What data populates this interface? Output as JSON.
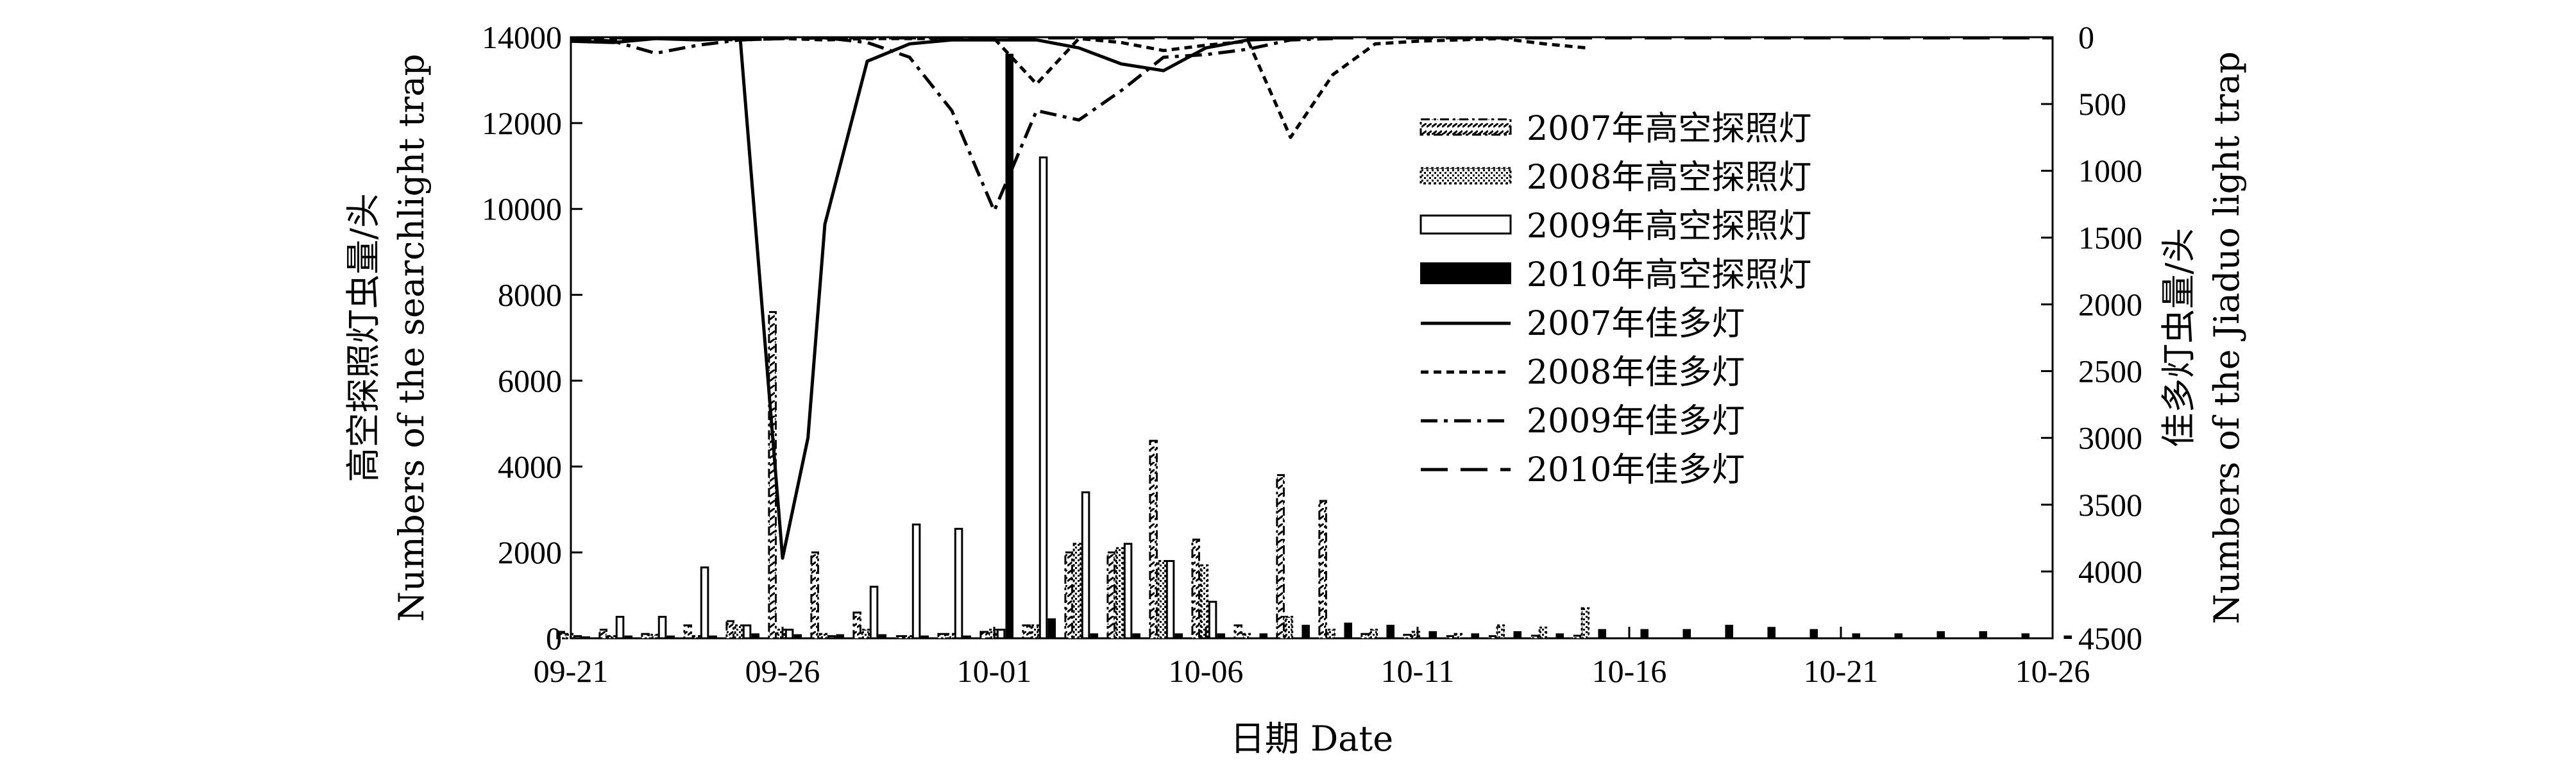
{
  "chart_data": {
    "type": "bar",
    "x": {
      "title": "日期 Date",
      "ticks": [
        "09-21",
        "09-26",
        "10-01",
        "10-06",
        "10-11",
        "10-16",
        "10-21",
        "10-26"
      ],
      "range": [
        "09-21",
        "10-26"
      ]
    },
    "y_left": {
      "title_cn": "高空探照灯虫量/头",
      "title_en": "Numbers of the searchlight trap",
      "range": [
        0,
        14000
      ],
      "ticks": [
        "0",
        "2000",
        "4000",
        "6000",
        "8000",
        "10000",
        "12000",
        "14000"
      ]
    },
    "y_right": {
      "title_cn": "佳多灯虫量/头",
      "title_en": "Numbers of the Jiaduo light trap",
      "range": [
        0,
        4500
      ],
      "reversed": true,
      "ticks": [
        "0",
        "500",
        "1000",
        "1500",
        "2000",
        "2500",
        "3000",
        "3500",
        "4000",
        "4500"
      ]
    },
    "legend_placement": "upper-middle-right",
    "bar_series": [
      {
        "name": "2007年高空探照灯",
        "style": "dashdot-hatch",
        "values": [
          [
            "09-21",
            150
          ],
          [
            "09-22",
            200
          ],
          [
            "09-23",
            100
          ],
          [
            "09-24",
            300
          ],
          [
            "09-25",
            400
          ],
          [
            "09-26",
            7600
          ],
          [
            "09-27",
            2000
          ],
          [
            "09-28",
            600
          ],
          [
            "09-29",
            50
          ],
          [
            "09-30",
            100
          ],
          [
            "10-01",
            150
          ],
          [
            "10-02",
            300
          ],
          [
            "10-03",
            2000
          ],
          [
            "10-04",
            2000
          ],
          [
            "10-05",
            4600
          ],
          [
            "10-06",
            2300
          ],
          [
            "10-07",
            300
          ],
          [
            "10-08",
            3800
          ],
          [
            "10-09",
            3200
          ],
          [
            "10-10",
            100
          ],
          [
            "10-11",
            80
          ],
          [
            "10-12",
            50
          ],
          [
            "10-13",
            50
          ],
          [
            "10-14",
            60
          ],
          [
            "10-15",
            60
          ]
        ]
      },
      {
        "name": "2008年高空探照灯",
        "style": "dotted-hatch",
        "values": [
          [
            "09-21",
            100
          ],
          [
            "09-22",
            50
          ],
          [
            "09-23",
            80
          ],
          [
            "09-24",
            50
          ],
          [
            "09-25",
            300
          ],
          [
            "09-26",
            200
          ],
          [
            "09-27",
            100
          ],
          [
            "09-28",
            200
          ],
          [
            "09-29",
            50
          ],
          [
            "09-30",
            100
          ],
          [
            "10-01",
            200
          ],
          [
            "10-02",
            300
          ],
          [
            "10-03",
            2200
          ],
          [
            "10-04",
            2100
          ],
          [
            "10-05",
            1800
          ],
          [
            "10-06",
            1700
          ],
          [
            "10-07",
            100
          ],
          [
            "10-08",
            500
          ],
          [
            "10-09",
            200
          ],
          [
            "10-10",
            200
          ],
          [
            "10-11",
            150
          ],
          [
            "10-12",
            100
          ],
          [
            "10-13",
            300
          ],
          [
            "10-14",
            250
          ],
          [
            "10-15",
            700
          ]
        ]
      },
      {
        "name": "2009年高空探照灯",
        "style": "hollow",
        "values": [
          [
            "09-21",
            50
          ],
          [
            "09-22",
            500
          ],
          [
            "09-23",
            500
          ],
          [
            "09-24",
            1650
          ],
          [
            "09-25",
            300
          ],
          [
            "09-26",
            200
          ],
          [
            "09-27",
            50
          ],
          [
            "09-28",
            1200
          ],
          [
            "09-29",
            2650
          ],
          [
            "09-30",
            2550
          ],
          [
            "10-01",
            200
          ],
          [
            "10-02",
            11200
          ],
          [
            "10-03",
            3400
          ],
          [
            "10-04",
            2200
          ],
          [
            "10-05",
            1800
          ],
          [
            "10-06",
            850
          ],
          [
            "10-07",
            0
          ],
          [
            "10-08",
            0
          ],
          [
            "10-09",
            0
          ],
          [
            "10-10",
            0
          ]
        ]
      },
      {
        "name": "2010年高空探照灯",
        "style": "solid",
        "values": [
          [
            "09-21",
            30
          ],
          [
            "09-22",
            50
          ],
          [
            "09-23",
            50
          ],
          [
            "09-24",
            50
          ],
          [
            "09-25",
            100
          ],
          [
            "09-26",
            80
          ],
          [
            "09-27",
            80
          ],
          [
            "09-28",
            80
          ],
          [
            "09-29",
            50
          ],
          [
            "09-30",
            50
          ],
          [
            "10-01",
            13600
          ],
          [
            "10-02",
            450
          ],
          [
            "10-03",
            100
          ],
          [
            "10-04",
            100
          ],
          [
            "10-05",
            100
          ],
          [
            "10-06",
            100
          ],
          [
            "10-07",
            100
          ],
          [
            "10-08",
            300
          ],
          [
            "10-09",
            350
          ],
          [
            "10-10",
            300
          ],
          [
            "10-11",
            150
          ],
          [
            "10-12",
            100
          ],
          [
            "10-13",
            150
          ],
          [
            "10-14",
            100
          ],
          [
            "10-15",
            200
          ],
          [
            "10-16",
            200
          ],
          [
            "10-17",
            200
          ],
          [
            "10-18",
            300
          ],
          [
            "10-19",
            250
          ],
          [
            "10-20",
            200
          ],
          [
            "10-21",
            100
          ],
          [
            "10-22",
            100
          ],
          [
            "10-23",
            150
          ],
          [
            "10-24",
            150
          ],
          [
            "10-25",
            100
          ],
          [
            "10-26",
            50
          ]
        ]
      }
    ],
    "line_series": [
      {
        "name": "2007年佳多灯",
        "style": "solid",
        "values": [
          [
            "09-21",
            30
          ],
          [
            "09-22",
            40
          ],
          [
            "09-23",
            10
          ],
          [
            "09-24",
            20
          ],
          [
            "09-25",
            10
          ],
          [
            "09-26",
            3900
          ],
          [
            "09-26.6",
            3000
          ],
          [
            "09-27",
            1400
          ],
          [
            "09-28",
            180
          ],
          [
            "09-29",
            50
          ],
          [
            "09-30",
            20
          ],
          [
            "10-01",
            20
          ],
          [
            "10-02",
            20
          ],
          [
            "10-03",
            80
          ],
          [
            "10-04",
            200
          ],
          [
            "10-05",
            250
          ],
          [
            "10-06",
            80
          ],
          [
            "10-07",
            20
          ],
          [
            "10-08",
            10
          ]
        ]
      },
      {
        "name": "2008年佳多灯",
        "style": "dashed-fine",
        "values": [
          [
            "09-21",
            10
          ],
          [
            "09-22",
            20
          ],
          [
            "09-23",
            10
          ],
          [
            "09-24",
            10
          ],
          [
            "09-25",
            20
          ],
          [
            "09-26",
            10
          ],
          [
            "09-27",
            20
          ],
          [
            "09-28",
            10
          ],
          [
            "09-29",
            10
          ],
          [
            "09-30",
            10
          ],
          [
            "10-01",
            10
          ],
          [
            "10-02",
            350
          ],
          [
            "10-03",
            10
          ],
          [
            "10-04",
            40
          ],
          [
            "10-05",
            100
          ],
          [
            "10-06",
            60
          ],
          [
            "10-07",
            30
          ],
          [
            "10-08",
            750
          ],
          [
            "10-09",
            280
          ],
          [
            "10-10",
            50
          ],
          [
            "10-11",
            30
          ],
          [
            "10-12",
            20
          ],
          [
            "10-13",
            10
          ],
          [
            "10-14",
            50
          ],
          [
            "10-15",
            80
          ]
        ]
      },
      {
        "name": "2009年佳多灯",
        "style": "dashdot",
        "values": [
          [
            "09-21",
            5
          ],
          [
            "09-22",
            30
          ],
          [
            "09-23",
            120
          ],
          [
            "09-24",
            60
          ],
          [
            "09-25",
            20
          ],
          [
            "09-26",
            10
          ],
          [
            "09-27",
            5
          ],
          [
            "09-28",
            40
          ],
          [
            "09-29",
            150
          ],
          [
            "09-30",
            550
          ],
          [
            "10-01",
            1300
          ],
          [
            "10-02",
            550
          ],
          [
            "10-03",
            620
          ],
          [
            "10-04",
            400
          ],
          [
            "10-05",
            150
          ],
          [
            "10-06",
            130
          ],
          [
            "10-07",
            90
          ],
          [
            "10-08",
            20
          ],
          [
            "10-09",
            10
          ]
        ]
      },
      {
        "name": "2010年佳多灯",
        "style": "long-dash",
        "values": [
          [
            "09-21",
            5
          ],
          [
            "09-26",
            5
          ],
          [
            "10-01",
            5
          ],
          [
            "10-06",
            5
          ],
          [
            "10-11",
            5
          ],
          [
            "10-16",
            5
          ],
          [
            "10-21",
            5
          ],
          [
            "10-26",
            5
          ]
        ]
      }
    ]
  }
}
